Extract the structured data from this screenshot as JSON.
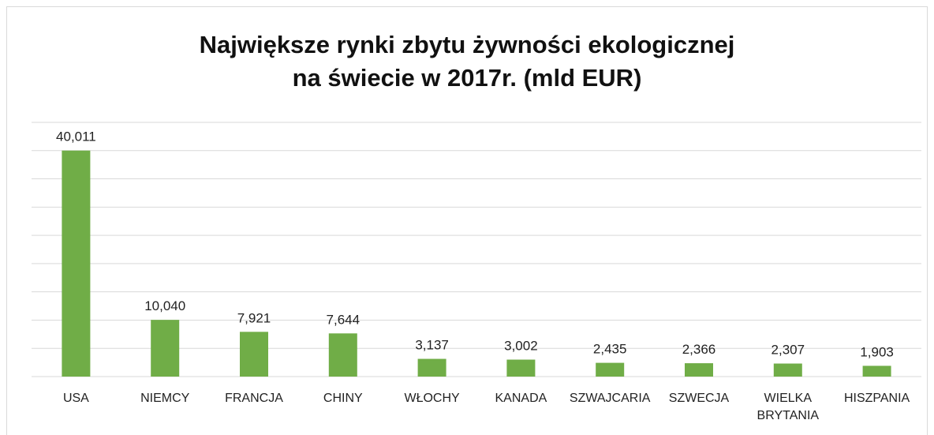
{
  "chart_data": {
    "type": "bar",
    "title": "Największe rynki zbytu żywności ekologicznej\nna świecie w 2017r. (mld EUR)",
    "categories": [
      "USA",
      "NIEMCY",
      "FRANCJA",
      "CHINY",
      "WŁOCHY",
      "KANADA",
      "SZWAJCARIA",
      "SZWECJA",
      "WIELKA BRYTANIA",
      "HISZPANIA"
    ],
    "values": [
      40.011,
      10.04,
      7.921,
      7.644,
      3.137,
      3.002,
      2.435,
      2.366,
      2.307,
      1.903
    ],
    "value_labels": [
      "40,011",
      "10,040",
      "7,921",
      "7,644",
      "3,137",
      "3,002",
      "2,435",
      "2,366",
      "2,307",
      "1,903"
    ],
    "color": "#70ad47",
    "ylim": [
      0,
      45
    ],
    "yticks": [
      0,
      5,
      10,
      15,
      20,
      25,
      30,
      35,
      40,
      45
    ],
    "grid": true
  }
}
